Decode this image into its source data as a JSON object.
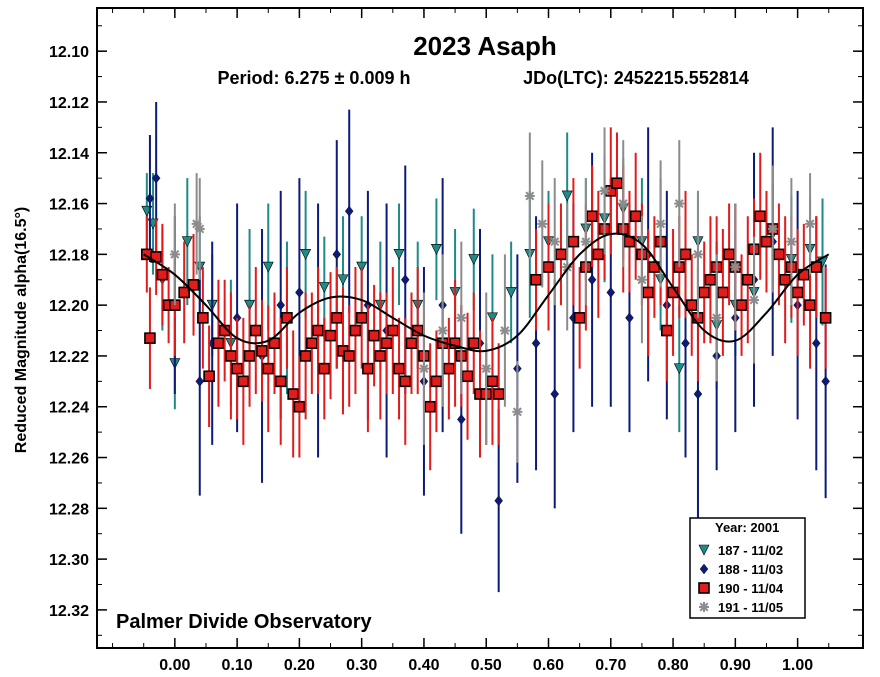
{
  "chart_data": {
    "type": "scatter",
    "title": "2023 Asaph",
    "subtitle_period": "Period: 6.275 ± 0.009 h",
    "subtitle_epoch": "JDo(LTC): 2452215.552814",
    "ylabel": "Reduced Magnitude alpha(16.5°)",
    "xlabel": "",
    "xlim": [
      -0.125,
      1.105
    ],
    "ylim": [
      12.335,
      12.083
    ],
    "y_inverted": true,
    "x_ticks": [
      "0.00",
      "0.10",
      "0.20",
      "0.30",
      "0.40",
      "0.50",
      "0.60",
      "0.70",
      "0.80",
      "0.90",
      "1.00"
    ],
    "x_tick_values": [
      0,
      0.1,
      0.2,
      0.3,
      0.4,
      0.5,
      0.6,
      0.7,
      0.8,
      0.9,
      1.0
    ],
    "y_ticks": [
      "12.10",
      "12.12",
      "12.14",
      "12.16",
      "12.18",
      "12.20",
      "12.22",
      "12.24",
      "12.26",
      "12.28",
      "12.30",
      "12.32"
    ],
    "y_tick_values": [
      12.1,
      12.12,
      12.14,
      12.16,
      12.18,
      12.2,
      12.22,
      12.24,
      12.26,
      12.28,
      12.3,
      12.32
    ],
    "annotation": "Palmer Divide Observatory",
    "legend": {
      "title": "Year: 2001",
      "position": "bottom-right",
      "entries": [
        {
          "label": "187 - 11/02",
          "marker": "triangle-down",
          "color": "#1f8a87"
        },
        {
          "label": "188 - 11/03",
          "marker": "diamond",
          "color": "#0c1a78"
        },
        {
          "label": "190 - 11/04",
          "marker": "square",
          "color": "#e21b1b"
        },
        {
          "label": "191 - 11/05",
          "marker": "asterisk",
          "color": "#8c8c8c"
        }
      ]
    },
    "fit_curve": {
      "color": "#000000",
      "x": [
        -0.05,
        0.0,
        0.05,
        0.1,
        0.15,
        0.2,
        0.25,
        0.3,
        0.35,
        0.4,
        0.45,
        0.5,
        0.55,
        0.6,
        0.65,
        0.7,
        0.75,
        0.8,
        0.85,
        0.9,
        0.95,
        1.0,
        1.05
      ],
      "y": [
        12.18,
        12.188,
        12.2,
        12.213,
        12.214,
        12.203,
        12.197,
        12.198,
        12.205,
        12.212,
        12.216,
        12.218,
        12.212,
        12.196,
        12.18,
        12.172,
        12.176,
        12.193,
        12.21,
        12.214,
        12.203,
        12.188,
        12.18
      ]
    },
    "series": [
      {
        "name": "187 - 11/02",
        "marker": "triangle-down",
        "color": "#1f8a87",
        "x": [
          -0.045,
          -0.035,
          -0.02,
          0.0,
          0.02,
          0.04,
          0.06,
          0.09,
          0.12,
          0.15,
          0.18,
          0.21,
          0.24,
          0.27,
          0.3,
          0.33,
          0.36,
          0.39,
          0.42,
          0.45,
          0.48,
          0.51,
          0.54,
          0.57,
          0.6,
          0.63,
          0.66,
          0.69,
          0.72,
          0.75,
          0.78,
          0.81,
          0.84,
          0.87,
          0.9,
          0.93,
          0.96,
          0.99,
          1.02,
          1.04
        ],
        "y": [
          12.163,
          12.168,
          12.19,
          12.223,
          12.175,
          12.185,
          12.2,
          12.215,
          12.2,
          12.185,
          12.205,
          12.18,
          12.193,
          12.19,
          12.185,
          12.2,
          12.18,
          12.2,
          12.178,
          12.195,
          12.182,
          12.205,
          12.195,
          12.18,
          12.175,
          12.157,
          12.17,
          12.166,
          12.162,
          12.175,
          12.19,
          12.225,
          12.175,
          12.208,
          12.2,
          12.195,
          12.172,
          12.182,
          12.178,
          12.183
        ],
        "err": [
          0.015,
          0.02,
          0.02,
          0.018,
          0.025,
          0.02,
          0.02,
          0.025,
          0.03,
          0.025,
          0.03,
          0.025,
          0.02,
          0.025,
          0.02,
          0.025,
          0.02,
          0.025,
          0.02,
          0.025,
          0.02,
          0.025,
          0.02,
          0.025,
          0.02,
          0.025,
          0.02,
          0.025,
          0.02,
          0.025,
          0.02,
          0.025,
          0.02,
          0.025,
          0.02,
          0.025,
          0.02,
          0.025,
          0.02,
          0.025
        ]
      },
      {
        "name": "188 - 11/03",
        "marker": "diamond",
        "color": "#0c1a78",
        "x": [
          -0.04,
          -0.03,
          0.0,
          0.04,
          0.06,
          0.1,
          0.14,
          0.17,
          0.2,
          0.23,
          0.26,
          0.28,
          0.31,
          0.34,
          0.37,
          0.4,
          0.43,
          0.46,
          0.49,
          0.52,
          0.55,
          0.58,
          0.61,
          0.64,
          0.67,
          0.7,
          0.73,
          0.76,
          0.79,
          0.82,
          0.84,
          0.87,
          0.9,
          0.93,
          0.96,
          1.0,
          1.03,
          1.045
        ],
        "y": [
          12.158,
          12.15,
          12.2,
          12.23,
          12.215,
          12.205,
          12.22,
          12.2,
          12.195,
          12.21,
          12.18,
          12.163,
          12.2,
          12.21,
          12.19,
          12.23,
          12.2,
          12.245,
          12.215,
          12.277,
          12.225,
          12.215,
          12.235,
          12.205,
          12.19,
          12.195,
          12.205,
          12.18,
          12.2,
          12.215,
          12.235,
          12.22,
          12.205,
          12.19,
          12.175,
          12.2,
          12.215,
          12.23
        ],
        "err": [
          0.025,
          0.03,
          0.035,
          0.045,
          0.04,
          0.045,
          0.05,
          0.045,
          0.045,
          0.05,
          0.045,
          0.04,
          0.045,
          0.05,
          0.045,
          0.045,
          0.05,
          0.045,
          0.045,
          0.036,
          0.045,
          0.05,
          0.045,
          0.045,
          0.05,
          0.045,
          0.045,
          0.05,
          0.045,
          0.045,
          0.05,
          0.045,
          0.045,
          0.05,
          0.045,
          0.045,
          0.05,
          0.046
        ]
      },
      {
        "name": "190 - 11/04",
        "marker": "square",
        "color": "#e21b1b",
        "x": [
          -0.045,
          -0.04,
          -0.03,
          -0.02,
          -0.01,
          0.0,
          0.015,
          0.03,
          0.045,
          0.055,
          0.07,
          0.08,
          0.09,
          0.1,
          0.11,
          0.12,
          0.13,
          0.14,
          0.15,
          0.16,
          0.17,
          0.18,
          0.19,
          0.2,
          0.21,
          0.22,
          0.23,
          0.24,
          0.25,
          0.26,
          0.27,
          0.28,
          0.29,
          0.3,
          0.31,
          0.32,
          0.33,
          0.34,
          0.35,
          0.36,
          0.37,
          0.38,
          0.39,
          0.4,
          0.41,
          0.42,
          0.43,
          0.44,
          0.45,
          0.46,
          0.47,
          0.48,
          0.49,
          0.5,
          0.51,
          0.52,
          0.58,
          0.6,
          0.62,
          0.64,
          0.65,
          0.66,
          0.67,
          0.68,
          0.69,
          0.7,
          0.71,
          0.72,
          0.73,
          0.74,
          0.75,
          0.76,
          0.77,
          0.78,
          0.79,
          0.8,
          0.81,
          0.82,
          0.83,
          0.84,
          0.85,
          0.86,
          0.87,
          0.88,
          0.89,
          0.9,
          0.91,
          0.92,
          0.93,
          0.94,
          0.95,
          0.96,
          0.97,
          0.98,
          0.99,
          1.0,
          1.01,
          1.02,
          1.03,
          1.045
        ],
        "y": [
          12.18,
          12.213,
          12.181,
          12.188,
          12.2,
          12.2,
          12.195,
          12.192,
          12.205,
          12.228,
          12.215,
          12.21,
          12.22,
          12.225,
          12.23,
          12.22,
          12.21,
          12.218,
          12.225,
          12.215,
          12.23,
          12.205,
          12.235,
          12.24,
          12.22,
          12.215,
          12.21,
          12.225,
          12.212,
          12.205,
          12.218,
          12.22,
          12.21,
          12.205,
          12.225,
          12.212,
          12.22,
          12.215,
          12.21,
          12.225,
          12.23,
          12.215,
          12.21,
          12.22,
          12.24,
          12.23,
          12.215,
          12.225,
          12.215,
          12.22,
          12.228,
          12.215,
          12.235,
          12.235,
          12.23,
          12.235,
          12.19,
          12.185,
          12.18,
          12.175,
          12.205,
          12.185,
          12.165,
          12.18,
          12.17,
          12.155,
          12.152,
          12.17,
          12.175,
          12.165,
          12.18,
          12.195,
          12.185,
          12.175,
          12.21,
          12.195,
          12.185,
          12.18,
          12.2,
          12.205,
          12.195,
          12.19,
          12.185,
          12.195,
          12.18,
          12.185,
          12.2,
          12.19,
          12.178,
          12.165,
          12.175,
          12.17,
          12.18,
          12.19,
          12.185,
          12.195,
          12.188,
          12.2,
          12.185,
          12.205
        ],
        "err": [
          0.015,
          0.02,
          0.015,
          0.02,
          0.015,
          0.02,
          0.02,
          0.02,
          0.02,
          0.02,
          0.025,
          0.02,
          0.025,
          0.02,
          0.025,
          0.02,
          0.025,
          0.02,
          0.025,
          0.02,
          0.025,
          0.02,
          0.025,
          0.02,
          0.025,
          0.02,
          0.025,
          0.02,
          0.025,
          0.02,
          0.025,
          0.02,
          0.025,
          0.02,
          0.025,
          0.02,
          0.025,
          0.02,
          0.025,
          0.02,
          0.025,
          0.02,
          0.025,
          0.02,
          0.025,
          0.02,
          0.025,
          0.02,
          0.025,
          0.02,
          0.025,
          0.02,
          0.025,
          0.02,
          0.025,
          0.02,
          0.02,
          0.025,
          0.02,
          0.025,
          0.02,
          0.025,
          0.02,
          0.025,
          0.02,
          0.025,
          0.02,
          0.025,
          0.02,
          0.025,
          0.02,
          0.025,
          0.02,
          0.025,
          0.02,
          0.025,
          0.02,
          0.025,
          0.02,
          0.025,
          0.02,
          0.025,
          0.02,
          0.025,
          0.02,
          0.025,
          0.02,
          0.025,
          0.02,
          0.025,
          0.02,
          0.025,
          0.02,
          0.025,
          0.02,
          0.025,
          0.02,
          0.025,
          0.02,
          0.02
        ]
      },
      {
        "name": "191 - 11/05",
        "marker": "asterisk",
        "color": "#8c8c8c",
        "x": [
          0.0,
          0.035,
          0.04,
          0.4,
          0.43,
          0.46,
          0.5,
          0.53,
          0.55,
          0.57,
          0.59,
          0.61,
          0.63,
          0.66,
          0.69,
          0.72,
          0.75,
          0.78,
          0.81,
          0.84,
          0.87,
          0.9,
          0.93,
          0.96,
          0.99,
          1.02
        ],
        "y": [
          12.18,
          12.168,
          12.17,
          12.225,
          12.21,
          12.205,
          12.225,
          12.21,
          12.242,
          12.157,
          12.168,
          12.175,
          12.185,
          12.175,
          12.155,
          12.16,
          12.19,
          12.168,
          12.16,
          12.18,
          12.205,
          12.185,
          12.198,
          12.17,
          12.175,
          12.168
        ],
        "err": [
          0.02,
          0.02,
          0.02,
          0.03,
          0.03,
          0.03,
          0.03,
          0.03,
          0.02,
          0.025,
          0.025,
          0.025,
          0.025,
          0.025,
          0.025,
          0.025,
          0.025,
          0.025,
          0.025,
          0.025,
          0.025,
          0.025,
          0.025,
          0.025,
          0.025,
          0.02
        ]
      }
    ]
  }
}
